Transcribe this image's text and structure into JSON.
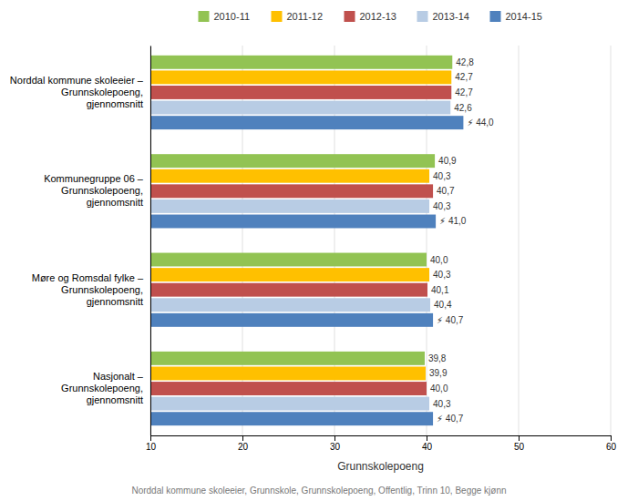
{
  "chart_data": {
    "type": "bar",
    "orientation": "horizontal",
    "categories": [
      "Norddal kommune skoleeier –\nGrunnskolepoeng,\ngjennomsnitt",
      "Kommunegruppe 06 –\nGrunnskolepoeng,\ngjennomsnitt",
      "Møre og Romsdal fylke –\nGrunnskolepoeng,\ngjennomsnitt",
      "Nasjonalt –\nGrunnskolepoeng,\ngjennomsnitt"
    ],
    "series": [
      {
        "name": "2010-11",
        "color": "#92C353",
        "values": [
          42.8,
          40.9,
          40.0,
          39.8
        ],
        "value_labels": [
          "42,8",
          "40,9",
          "40,0",
          "39,8"
        ]
      },
      {
        "name": "2011-12",
        "color": "#FFC000",
        "values": [
          42.7,
          40.3,
          40.3,
          39.9
        ],
        "value_labels": [
          "42,7",
          "40,3",
          "40,3",
          "39,9"
        ]
      },
      {
        "name": "2012-13",
        "color": "#C0504D",
        "values": [
          42.7,
          40.7,
          40.1,
          40.0
        ],
        "value_labels": [
          "42,7",
          "40,7",
          "40,1",
          "40,0"
        ]
      },
      {
        "name": "2013-14",
        "color": "#B8CCE4",
        "values": [
          42.6,
          40.3,
          40.4,
          40.3
        ],
        "value_labels": [
          "42,6",
          "40,3",
          "40,4",
          "40,3"
        ]
      },
      {
        "name": "2014-15",
        "color": "#4F81BD",
        "values": [
          44.0,
          41.0,
          40.7,
          40.7
        ],
        "value_labels": [
          "⚡ 44,0",
          "⚡ 41,0",
          "⚡ 40,7",
          "⚡ 40,7"
        ]
      }
    ],
    "xlabel": "Grunnskolepoeng",
    "xlim": [
      10,
      60
    ],
    "xticks": [
      10,
      20,
      30,
      40,
      50,
      60
    ],
    "grid": true,
    "data_labels": true,
    "footnote": "Norddal kommune skoleeier, Grunnskole, Grunnskolepoeng, Offentlig, Trinn 10, Begge kjønn"
  }
}
